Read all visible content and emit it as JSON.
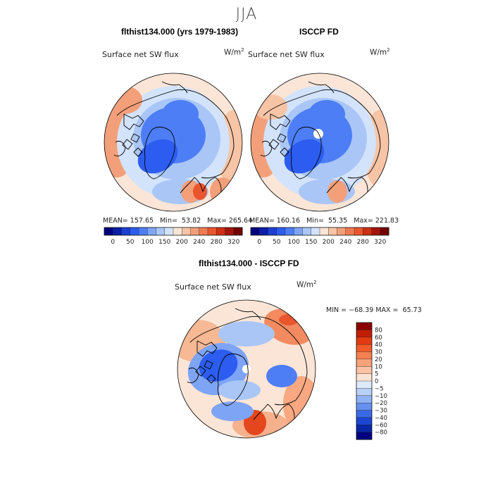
{
  "page": {
    "suptitle": "JJA"
  },
  "chart_data": [
    {
      "type": "heatmap",
      "title": "flthist134.000 (yrs 1979-1983)",
      "subtitle": "Surface net SW flux",
      "units": "W/m",
      "units_exp": "2",
      "projection": "north polar stereographic",
      "stats": {
        "mean_label": "MEAN=",
        "mean": "157.65",
        "min_label": "Min=",
        "min": "53.82",
        "max_label": "Max=",
        "max": "265.64"
      },
      "colorbar": {
        "orientation": "horizontal",
        "tick_labels": [
          "0",
          "50",
          "100",
          "150",
          "200",
          "240",
          "280",
          "320"
        ],
        "colors": [
          "#00007f",
          "#0a1ea8",
          "#1e3fd2",
          "#2d5df0",
          "#4d7ef5",
          "#7ea4f5",
          "#a9c6f7",
          "#d3e3fb",
          "#fbe5d7",
          "#f7c4a6",
          "#f3a07a",
          "#ee7a52",
          "#e9562e",
          "#cf3014",
          "#a3140a",
          "#720000"
        ]
      }
    },
    {
      "type": "heatmap",
      "title": "ISCCP FD",
      "subtitle": "Surface net SW flux",
      "units": "W/m",
      "units_exp": "2",
      "projection": "north polar stereographic",
      "stats": {
        "mean_label": "MEAN=",
        "mean": "160.16",
        "min_label": "Min=",
        "min": "55.35",
        "max_label": "Max=",
        "max": "221.83"
      },
      "colorbar": {
        "orientation": "horizontal",
        "tick_labels": [
          "0",
          "50",
          "100",
          "150",
          "200",
          "240",
          "280",
          "320"
        ],
        "colors": [
          "#00007f",
          "#0a1ea8",
          "#1e3fd2",
          "#2d5df0",
          "#4d7ef5",
          "#7ea4f5",
          "#a9c6f7",
          "#d3e3fb",
          "#fbe5d7",
          "#f7c4a6",
          "#f3a07a",
          "#ee7a52",
          "#e9562e",
          "#cf3014",
          "#a3140a",
          "#720000"
        ]
      }
    },
    {
      "type": "heatmap",
      "title": "flthist134.000 - ISCCP FD",
      "subtitle": "Surface net SW flux",
      "units": "W/m",
      "units_exp": "2",
      "projection": "north polar stereographic",
      "stats": {
        "min_label": "MIN =",
        "min": "−68.39",
        "max_label": "MAX =",
        "max": "65.73"
      },
      "colorbar": {
        "orientation": "vertical",
        "tick_labels": [
          "80",
          "60",
          "40",
          "30",
          "20",
          "10",
          "5",
          "0",
          "−5",
          "−10",
          "−20",
          "−30",
          "−40",
          "−60",
          "−80"
        ],
        "colors": [
          "#8b0000",
          "#c21e06",
          "#e33a12",
          "#f25c2a",
          "#f78050",
          "#f9a17a",
          "#fbc3a5",
          "#fde3d3",
          "#dce9fb",
          "#b8d0f8",
          "#8fb2f4",
          "#6590ef",
          "#3b69e6",
          "#1c45d2",
          "#0a27a8",
          "#000080"
        ]
      }
    }
  ]
}
